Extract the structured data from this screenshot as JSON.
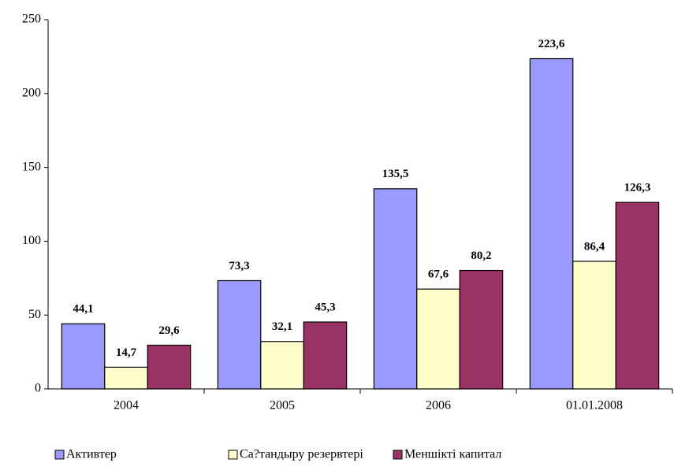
{
  "chart_data": {
    "type": "bar",
    "categories": [
      "2004",
      "2005",
      "2006",
      "01.01.2008"
    ],
    "series": [
      {
        "name": "Активтер",
        "color": "#9999ff",
        "values": [
          44.1,
          73.3,
          135.5,
          223.6
        ],
        "value_labels": [
          "44,1",
          "73,3",
          "135,5",
          "223,6"
        ]
      },
      {
        "name": "Са?тандыру резервтері",
        "color": "#ffffcc",
        "values": [
          14.7,
          32.1,
          67.6,
          86.4
        ],
        "value_labels": [
          "14,7",
          "32,1",
          "67,6",
          "86,4"
        ]
      },
      {
        "name": "Меншікті капитал",
        "color": "#993366",
        "values": [
          29.6,
          45.3,
          80.2,
          126.3
        ],
        "value_labels": [
          "29,6",
          "45,3",
          "80,2",
          "126,3"
        ]
      }
    ],
    "ylim": [
      0,
      250
    ],
    "yticks": [
      0,
      50,
      100,
      150,
      200,
      250
    ],
    "grid": false,
    "legend": "bottom"
  }
}
